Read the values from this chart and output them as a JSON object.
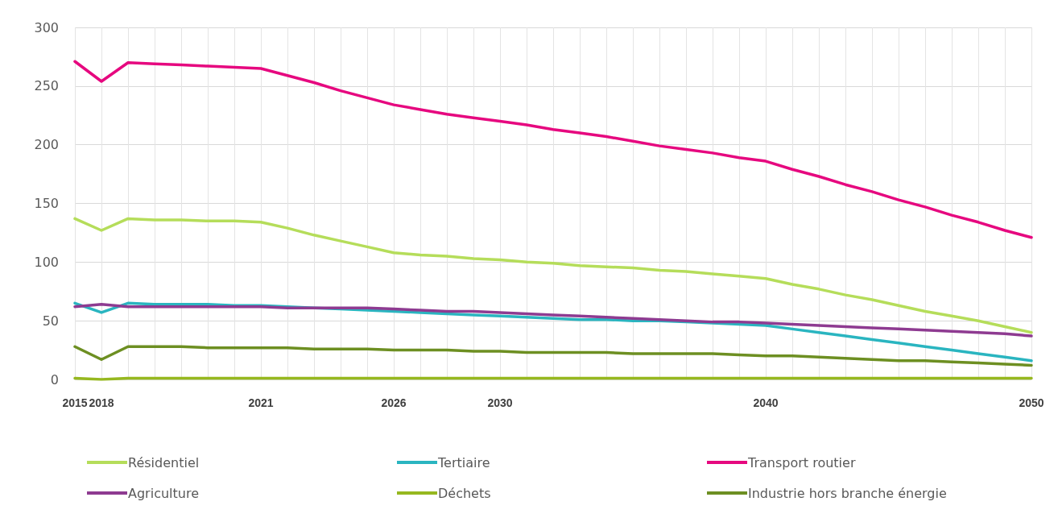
{
  "chart_data": {
    "type": "line",
    "categories": [
      "2015",
      "2018",
      null,
      null,
      null,
      null,
      null,
      "2021",
      null,
      null,
      null,
      null,
      "2026",
      null,
      null,
      null,
      "2030",
      null,
      null,
      null,
      null,
      null,
      null,
      null,
      null,
      null,
      "2040",
      null,
      null,
      null,
      null,
      null,
      null,
      null,
      null,
      null,
      "2050"
    ],
    "series": [
      {
        "name": "Résidentiel",
        "color": "#b5dd5a",
        "values": [
          137,
          127,
          137,
          136,
          136,
          135,
          135,
          134,
          129,
          123,
          118,
          113,
          108,
          106,
          105,
          103,
          102,
          100,
          99,
          97,
          96,
          95,
          93,
          92,
          90,
          88,
          86,
          81,
          77,
          72,
          68,
          63,
          58,
          54,
          50,
          45,
          40
        ]
      },
      {
        "name": "Tertiaire",
        "color": "#2ab5c0",
        "values": [
          65,
          57,
          65,
          64,
          64,
          64,
          63,
          63,
          62,
          61,
          60,
          59,
          58,
          57,
          56,
          55,
          54,
          53,
          52,
          51,
          51,
          50,
          50,
          49,
          48,
          47,
          46,
          43,
          40,
          37,
          34,
          31,
          28,
          25,
          22,
          19,
          16
        ]
      },
      {
        "name": "Transport routier",
        "color": "#e6087f",
        "values": [
          271,
          254,
          270,
          269,
          268,
          267,
          266,
          265,
          259,
          253,
          246,
          240,
          234,
          230,
          226,
          223,
          220,
          217,
          213,
          210,
          207,
          203,
          199,
          196,
          193,
          189,
          186,
          179,
          173,
          166,
          160,
          153,
          147,
          140,
          134,
          127,
          121
        ]
      },
      {
        "name": "Agriculture",
        "color": "#8e3b91",
        "values": [
          62,
          64,
          62,
          62,
          62,
          62,
          62,
          62,
          61,
          61,
          61,
          61,
          60,
          59,
          58,
          58,
          57,
          56,
          55,
          54,
          53,
          52,
          51,
          50,
          49,
          49,
          48,
          47,
          46,
          45,
          44,
          43,
          42,
          41,
          40,
          39,
          37
        ]
      },
      {
        "name": "Déchets",
        "color": "#96b81f",
        "values": [
          1,
          0,
          1,
          1,
          1,
          1,
          1,
          1,
          1,
          1,
          1,
          1,
          1,
          1,
          1,
          1,
          1,
          1,
          1,
          1,
          1,
          1,
          1,
          1,
          1,
          1,
          1,
          1,
          1,
          1,
          1,
          1,
          1,
          1,
          1,
          1,
          1
        ]
      },
      {
        "name": "Industrie hors branche énergie",
        "color": "#6d8f22",
        "values": [
          28,
          17,
          28,
          28,
          28,
          27,
          27,
          27,
          27,
          26,
          26,
          26,
          25,
          25,
          25,
          24,
          24,
          23,
          23,
          23,
          23,
          22,
          22,
          22,
          22,
          21,
          20,
          20,
          19,
          18,
          17,
          16,
          16,
          15,
          14,
          13,
          12
        ]
      }
    ],
    "ylim": [
      0,
      300
    ],
    "yticks": [
      0,
      50,
      100,
      150,
      200,
      250,
      300
    ],
    "grid": true,
    "legend": "bottom",
    "marker": "none",
    "line_style": "solid"
  }
}
